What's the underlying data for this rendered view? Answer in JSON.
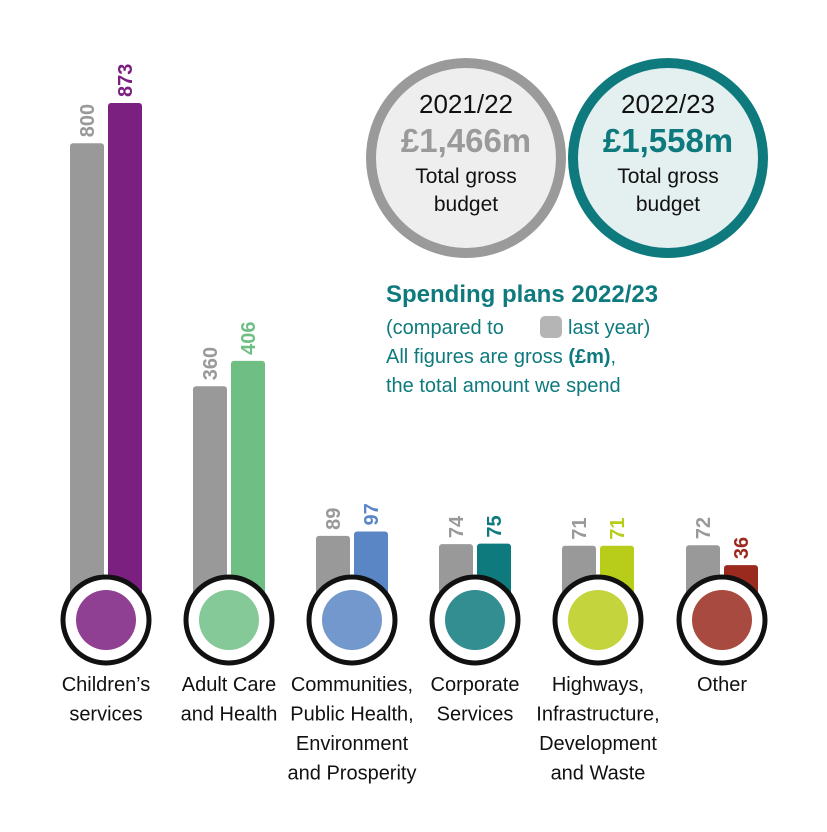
{
  "chart_data": {
    "type": "bar",
    "title": "Spending plans 2022/23",
    "notes": [
      "(compared to",
      "last year)",
      "All figures are gross",
      "(£m)",
      ",",
      "the total amount we spend"
    ],
    "total_caption": "Total gross\nbudget",
    "categories": [
      "Children’s\nservices",
      "Adult Care\nand Health",
      "Communities,\nPublic Health,\nEnvironment\nand Prosperity",
      "Corporate\nServices",
      "Highways,\nInfrastructure,\nDevelopment\nand Waste",
      "Other"
    ],
    "series": [
      {
        "name": "2021/22",
        "color": "#999999",
        "values": [
          800,
          360,
          89,
          74,
          71,
          72
        ],
        "total": 1466,
        "total_label": "£1,466m"
      },
      {
        "name": "2022/23",
        "color": "#0e7a7e",
        "colors": [
          "#7b1f80",
          "#6fbf85",
          "#5b86c6",
          "#0e7a7e",
          "#b8cc1a",
          "#9a2a1e"
        ],
        "values": [
          873,
          406,
          97,
          75,
          71,
          36
        ],
        "total": 1558,
        "total_label": "£1,558m"
      }
    ],
    "ylim": [
      0,
      873
    ]
  }
}
